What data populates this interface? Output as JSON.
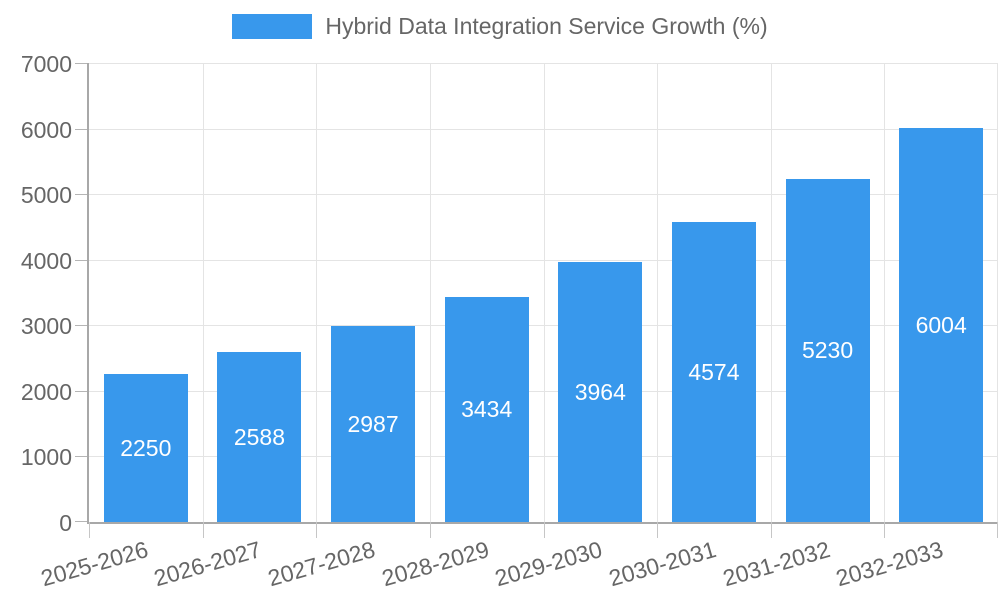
{
  "chart_data": {
    "type": "bar",
    "series_name": "Hybrid Data Integration Service Growth (%)",
    "categories": [
      "2025-2026",
      "2026-2027",
      "2027-2028",
      "2028-2029",
      "2029-2030",
      "2030-2031",
      "2031-2032",
      "2032-2033"
    ],
    "values": [
      2250,
      2588,
      2987,
      3434,
      3964,
      4574,
      5230,
      6004
    ],
    "value_labels": [
      "2250",
      "2588",
      "2987",
      "3434",
      "3964",
      "4574",
      "5230",
      "6004"
    ],
    "ytick_labels": [
      "0",
      "1000",
      "2000",
      "3000",
      "4000",
      "5000",
      "6000",
      "7000"
    ],
    "ylim": [
      0,
      7000
    ],
    "ytick_step": 1000,
    "xlabel": "",
    "ylabel": "",
    "grid": "on",
    "legend_position": "top-center",
    "x_label_rotation_deg": -16,
    "colors": {
      "bar": "#3898EC",
      "value_label": "#ffffff",
      "axis_label": "#666666",
      "legend_label": "#666666",
      "gridline": "#e4e4e4",
      "axis_line": "#a8a8a8",
      "background": "#ffffff"
    }
  }
}
